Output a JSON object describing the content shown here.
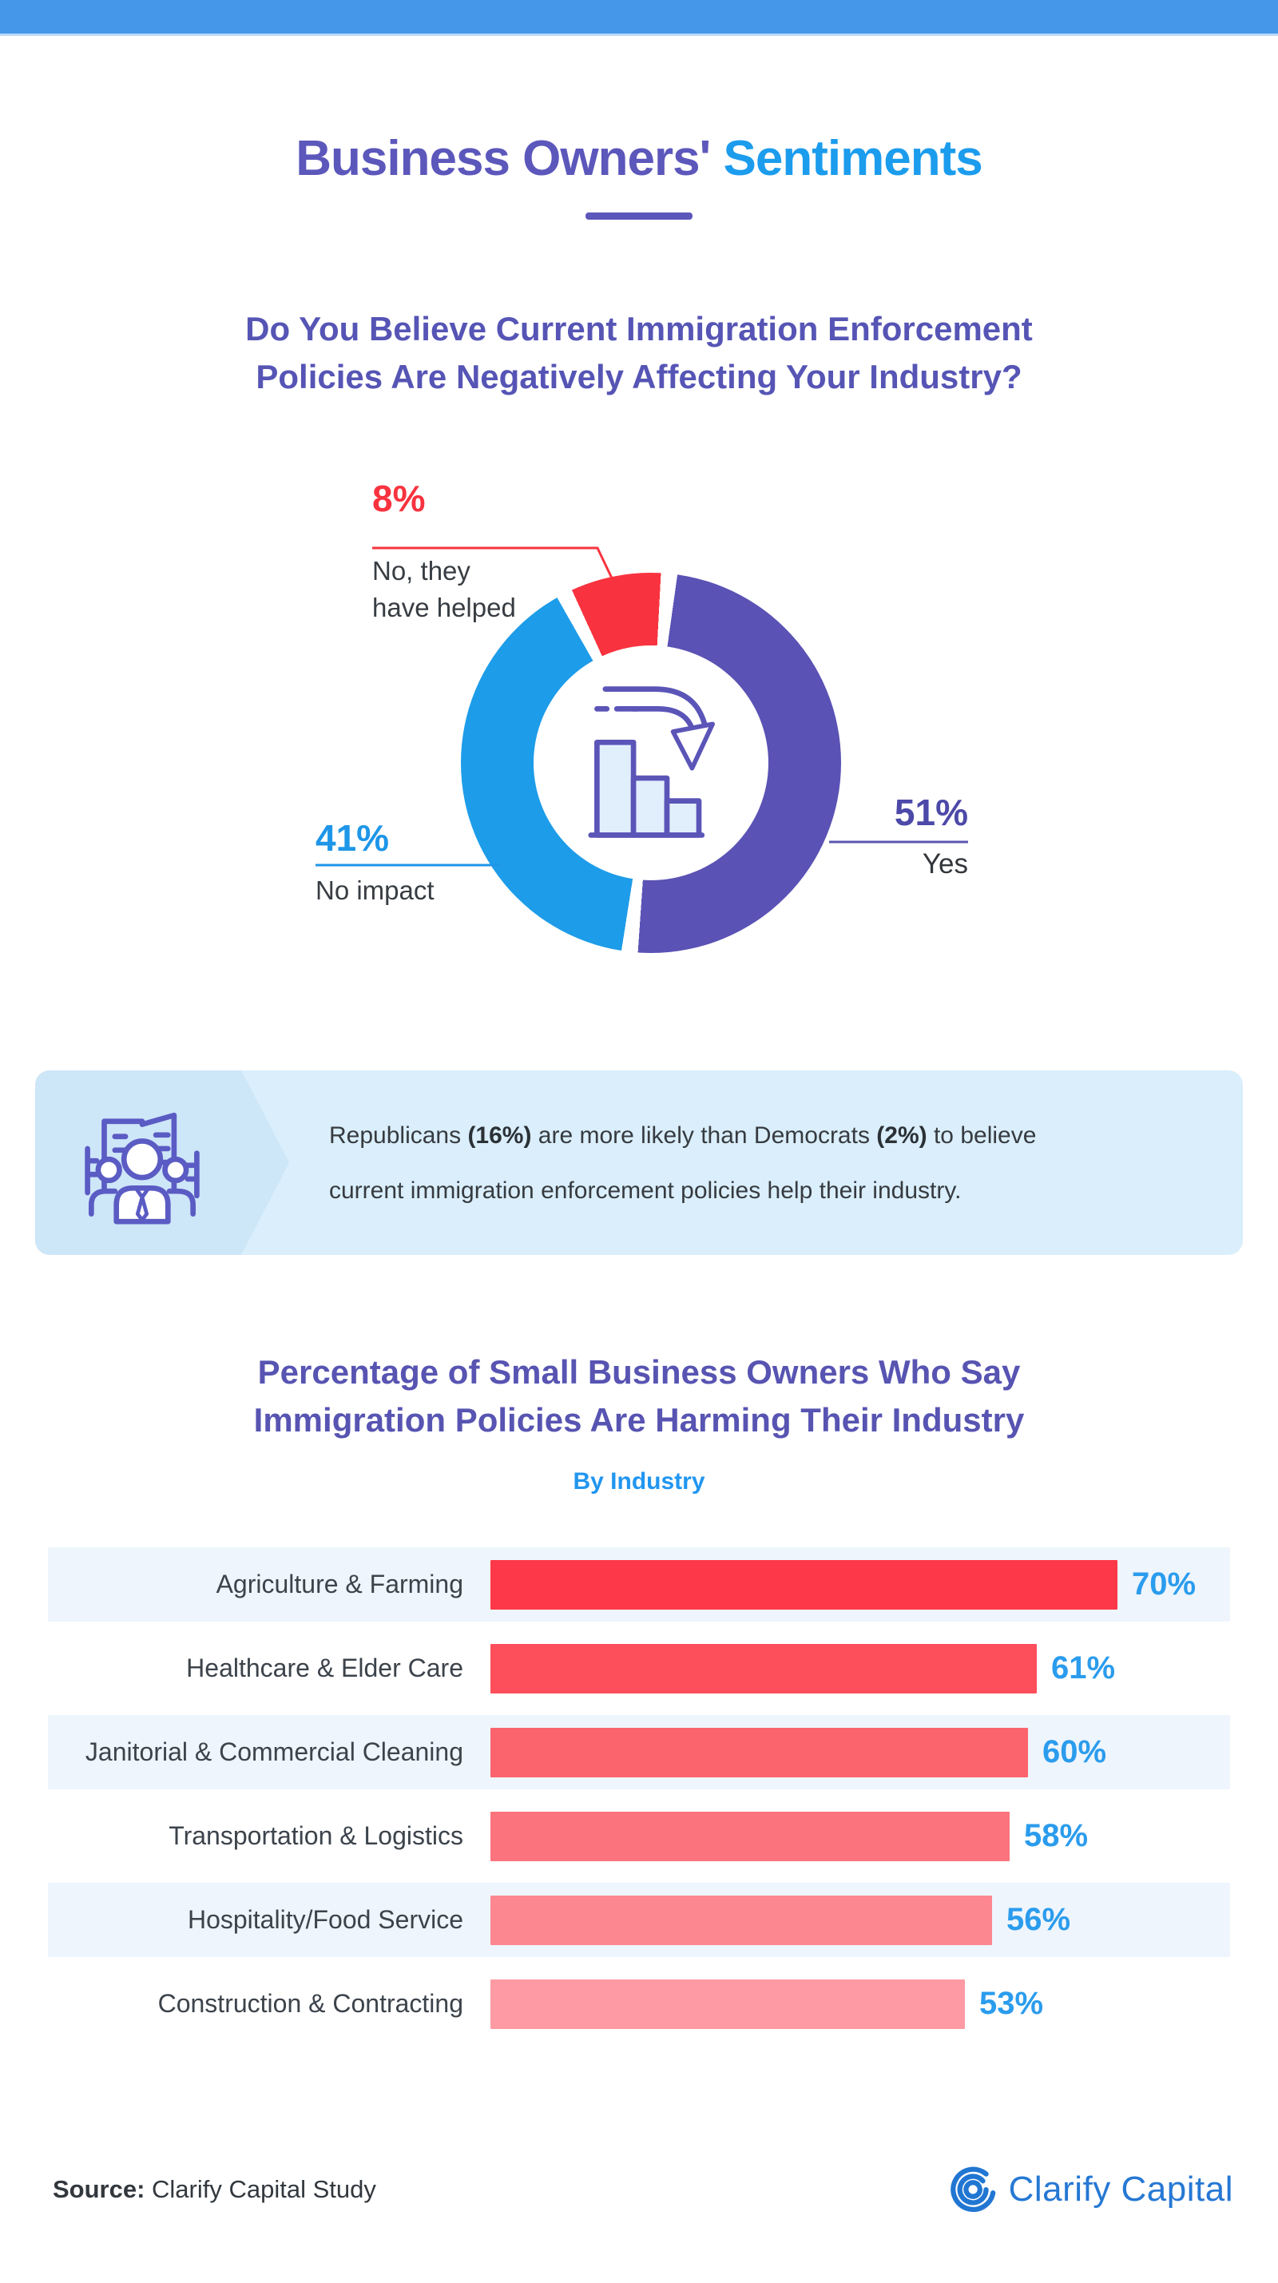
{
  "header": {
    "title_part1": "Business Owners'",
    "title_part2": "Sentiments",
    "title_color1": "#5c57bb",
    "title_color2": "#1c9ced",
    "underline_color": "#5b57bb",
    "topbar_color": "#4497e9"
  },
  "section_donut": {
    "heading_line1": "Do You Believe Current Immigration Enforcement",
    "heading_line2": "Policies Are Negatively Affecting Your Industry?",
    "heading_color": "#5655b5"
  },
  "chart_data": [
    {
      "type": "pie",
      "variant": "donut",
      "title": "Do You Believe Current Immigration Enforcement Policies Are Negatively Affecting Your Industry?",
      "legend_position": "around",
      "center_icon": "declining-bar-chart-icon",
      "segments": [
        {
          "label": "Yes",
          "value": 51,
          "value_label": "51%",
          "color": "#5a52b4",
          "label_color": "#4c49a8"
        },
        {
          "label": "No impact",
          "value": 41,
          "value_label": "41%",
          "color": "#1d9ce9",
          "label_color": "#1e96e8"
        },
        {
          "label": "No, they have helped",
          "label_line1": "No, they",
          "label_line2": "have helped",
          "value": 8,
          "value_label": "8%",
          "color": "#f8333f",
          "label_color": "#f8333f"
        }
      ]
    },
    {
      "type": "bar",
      "orientation": "horizontal",
      "title": "Percentage of Small Business Owners Who Say Immigration Policies Are Harming Their Industry",
      "subtitle": "By Industry",
      "xlim": [
        0,
        70
      ],
      "grid": false,
      "value_label_color": "#2b9ced",
      "rows": [
        {
          "label": "Agriculture & Farming",
          "value": 70,
          "value_label": "70%",
          "color": "#fd3848"
        },
        {
          "label": "Healthcare & Elder Care",
          "value": 61,
          "value_label": "61%",
          "color": "#fc4f5b"
        },
        {
          "label": "Janitorial & Commercial Cleaning",
          "value": 60,
          "value_label": "60%",
          "color": "#fb636d"
        },
        {
          "label": "Transportation & Logistics",
          "value": 58,
          "value_label": "58%",
          "color": "#fb737d"
        },
        {
          "label": "Hospitality/Food Service",
          "value": 56,
          "value_label": "56%",
          "color": "#fc8790"
        },
        {
          "label": "Construction & Contracting",
          "value": 53,
          "value_label": "53%",
          "color": "#fd9aa3"
        }
      ]
    }
  ],
  "callout": {
    "icon": "business-people-icon",
    "text_1": "Republicans ",
    "bold_1": "(16%)",
    "text_2": " are more likely than Democrats ",
    "bold_2": "(2%)",
    "text_3": " to believe",
    "line2": "current immigration enforcement policies help their industry.",
    "background": "#daeefb",
    "accent": "#cde6f8"
  },
  "section_bars": {
    "title_line1": "Percentage of Small Business Owners Who Say",
    "title_line2": "Immigration Policies Are Harming Their Industry",
    "subtitle": "By Industry"
  },
  "footer": {
    "source_label": "Source:",
    "source_text": " Clarify Capital Study",
    "brand": "Clarify Capital",
    "brand_color": "#2678d4"
  }
}
